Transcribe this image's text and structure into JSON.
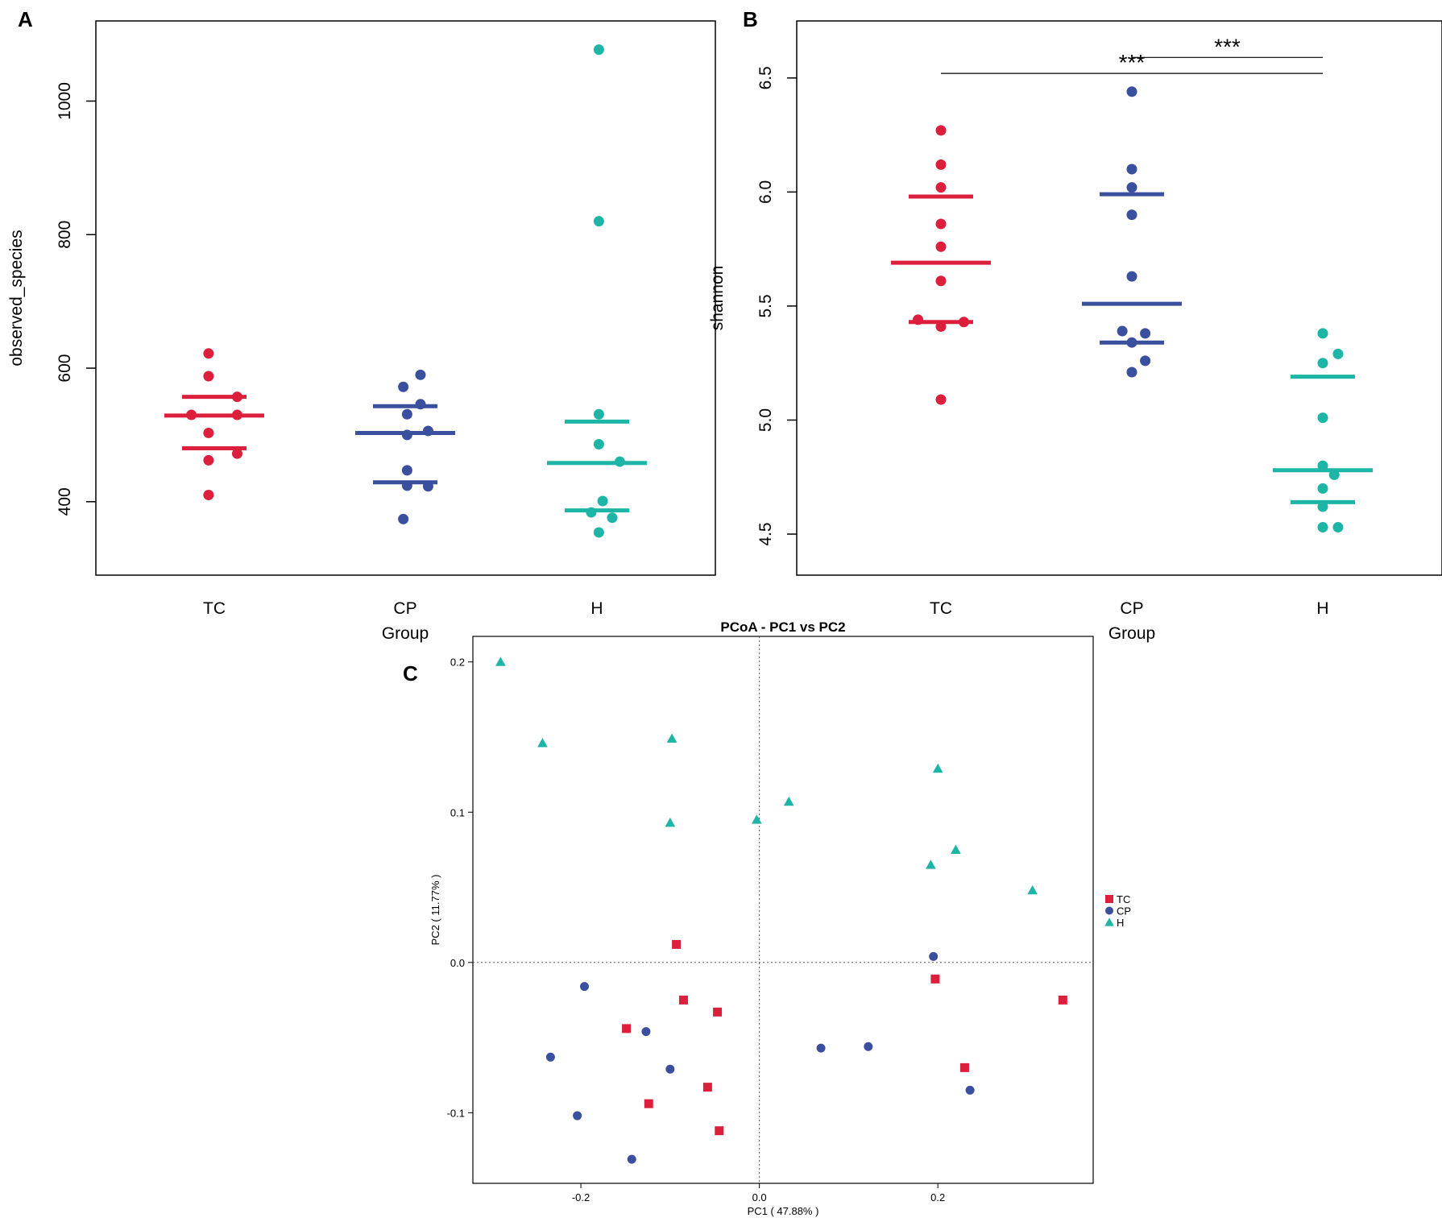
{
  "colors": {
    "TC": "#dc1f3c",
    "CP": "#3a4f9e",
    "H": "#1db5a5",
    "axis": "#000000"
  },
  "chart_data": [
    {
      "panel": "A",
      "type": "scatter",
      "xlabel": "Group",
      "ylabel": "observed_species",
      "ylim": [
        290,
        1120
      ],
      "yticks": [
        400,
        600,
        800,
        1000
      ],
      "categories": [
        "TC",
        "CP",
        "H"
      ],
      "series": [
        {
          "name": "TC",
          "color_key": "TC",
          "points": [
            [
              -0.03,
              622
            ],
            [
              -0.03,
              588
            ],
            [
              0.12,
              557
            ],
            [
              -0.12,
              530
            ],
            [
              0.12,
              530
            ],
            [
              -0.03,
              503
            ],
            [
              0.12,
              472
            ],
            [
              -0.03,
              462
            ],
            [
              -0.03,
              410
            ]
          ],
          "mean": 529,
          "ci": [
            557,
            480
          ]
        },
        {
          "name": "CP",
          "color_key": "CP",
          "points": [
            [
              0.08,
              590
            ],
            [
              -0.01,
              572
            ],
            [
              0.08,
              546
            ],
            [
              0.01,
              531
            ],
            [
              0.12,
              506
            ],
            [
              0.01,
              500
            ],
            [
              0.01,
              447
            ],
            [
              0.01,
              424
            ],
            [
              0.12,
              423
            ],
            [
              -0.01,
              374
            ]
          ],
          "mean": 503,
          "ci": [
            543,
            429
          ]
        },
        {
          "name": "H",
          "color_key": "H",
          "points": [
            [
              0.01,
              1077
            ],
            [
              0.01,
              820
            ],
            [
              0.01,
              531
            ],
            [
              0.01,
              486
            ],
            [
              0.12,
              460
            ],
            [
              0.03,
              401
            ],
            [
              -0.03,
              384
            ],
            [
              0.08,
              376
            ],
            [
              0.01,
              354
            ]
          ],
          "mean": 458,
          "ci": [
            520,
            387
          ]
        }
      ]
    },
    {
      "panel": "B",
      "type": "scatter",
      "xlabel": "Group",
      "ylabel": "shannon",
      "ylim": [
        4.32,
        6.75
      ],
      "yticks": [
        "4.5",
        "5.0",
        "5.5",
        "6.0",
        "6.5"
      ],
      "categories": [
        "TC",
        "CP",
        "H"
      ],
      "significance": [
        {
          "from": "CP",
          "to": "H",
          "y": 6.59,
          "label": "***"
        },
        {
          "from": "TC",
          "to": "H",
          "y": 6.52,
          "label": "***"
        }
      ],
      "series": [
        {
          "name": "TC",
          "color_key": "TC",
          "points": [
            [
              0.0,
              6.27
            ],
            [
              0.0,
              6.12
            ],
            [
              0.0,
              6.02
            ],
            [
              0.0,
              5.86
            ],
            [
              0.0,
              5.76
            ],
            [
              0.0,
              5.61
            ],
            [
              -0.12,
              5.44
            ],
            [
              0.12,
              5.43
            ],
            [
              0.0,
              5.41
            ],
            [
              0.0,
              5.09
            ]
          ],
          "mean": 5.69,
          "ci": [
            5.98,
            5.43
          ]
        },
        {
          "name": "CP",
          "color_key": "CP",
          "points": [
            [
              0.0,
              6.44
            ],
            [
              0.0,
              6.1
            ],
            [
              0.0,
              6.02
            ],
            [
              0.0,
              5.9
            ],
            [
              0.0,
              5.63
            ],
            [
              -0.05,
              5.39
            ],
            [
              0.07,
              5.38
            ],
            [
              0.0,
              5.34
            ],
            [
              0.07,
              5.26
            ],
            [
              0.0,
              5.21
            ]
          ],
          "mean": 5.51,
          "ci": [
            5.99,
            5.34
          ]
        },
        {
          "name": "H",
          "color_key": "H",
          "points": [
            [
              0.0,
              5.38
            ],
            [
              0.08,
              5.29
            ],
            [
              0.0,
              5.25
            ],
            [
              0.0,
              5.01
            ],
            [
              0.0,
              4.8
            ],
            [
              0.06,
              4.76
            ],
            [
              0.0,
              4.7
            ],
            [
              0.0,
              4.62
            ],
            [
              0.0,
              4.53
            ],
            [
              0.08,
              4.53
            ]
          ],
          "mean": 4.78,
          "ci": [
            5.19,
            4.64
          ]
        }
      ]
    },
    {
      "panel": "C",
      "type": "scatter",
      "title": "PCoA - PC1 vs PC2",
      "xlabel": "PC1 ( 47.88% )",
      "ylabel": "PC2 ( 11.77% )",
      "xlim": [
        -0.321,
        0.374
      ],
      "ylim": [
        -0.147,
        0.217
      ],
      "xticks": [
        "-0.2",
        "0.0",
        "0.2"
      ],
      "yticks": [
        "-0.1",
        "0.0",
        "0.1",
        "0.2"
      ],
      "legend": [
        "TC",
        "CP",
        "H"
      ],
      "legend_position": "right",
      "series": [
        {
          "name": "TC",
          "color_key": "TC",
          "marker": "square",
          "points": [
            [
              -0.093,
              0.012
            ],
            [
              -0.085,
              -0.025
            ],
            [
              -0.047,
              -0.033
            ],
            [
              -0.149,
              -0.044
            ],
            [
              -0.058,
              -0.083
            ],
            [
              -0.124,
              -0.094
            ],
            [
              -0.045,
              -0.112
            ],
            [
              0.197,
              -0.011
            ],
            [
              0.34,
              -0.025
            ],
            [
              0.23,
              -0.07
            ]
          ]
        },
        {
          "name": "CP",
          "color_key": "CP",
          "marker": "circle",
          "points": [
            [
              -0.196,
              -0.016
            ],
            [
              -0.127,
              -0.046
            ],
            [
              -0.234,
              -0.063
            ],
            [
              -0.1,
              -0.071
            ],
            [
              -0.204,
              -0.102
            ],
            [
              -0.143,
              -0.131
            ],
            [
              0.069,
              -0.057
            ],
            [
              0.122,
              -0.056
            ],
            [
              0.195,
              0.004
            ],
            [
              0.236,
              -0.085
            ]
          ]
        },
        {
          "name": "H",
          "color_key": "H",
          "marker": "triangle",
          "points": [
            [
              -0.29,
              0.2
            ],
            [
              -0.243,
              0.146
            ],
            [
              -0.098,
              0.149
            ],
            [
              -0.1,
              0.093
            ],
            [
              -0.003,
              0.095
            ],
            [
              0.033,
              0.107
            ],
            [
              0.2,
              0.129
            ],
            [
              0.22,
              0.075
            ],
            [
              0.192,
              0.065
            ],
            [
              0.306,
              0.048
            ]
          ]
        }
      ]
    }
  ]
}
